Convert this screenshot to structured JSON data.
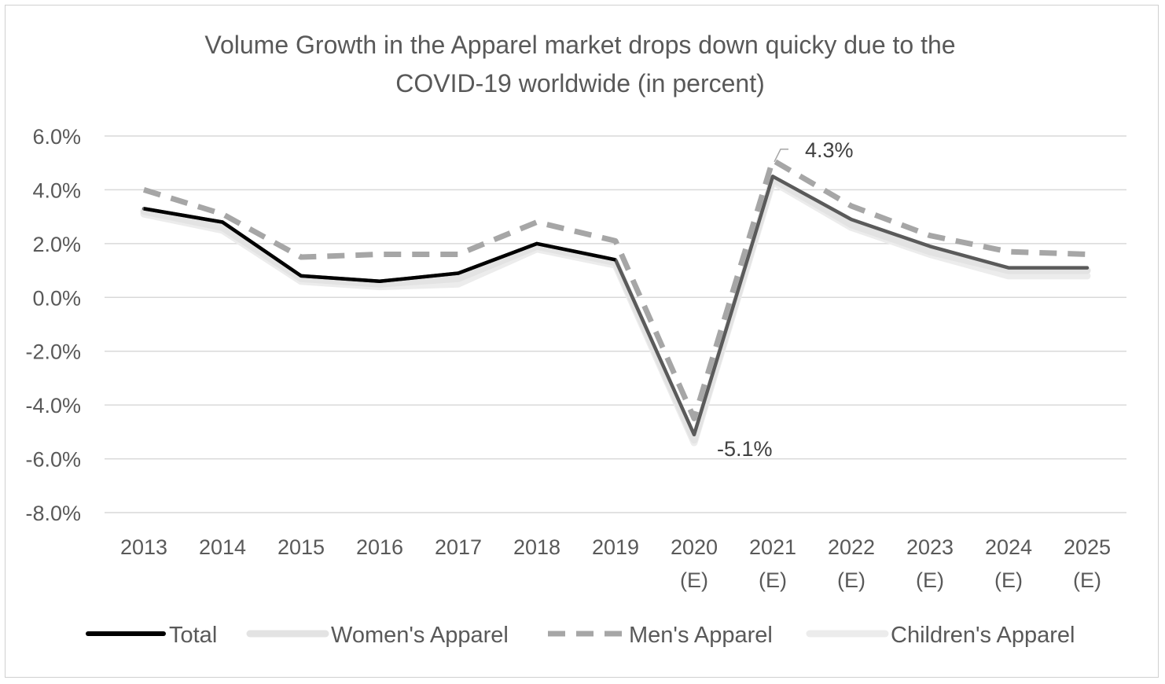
{
  "chart_data": {
    "type": "line",
    "title_lines": [
      "Volume Growth in the Apparel market drops down quicky due to the",
      "COVID-19 worldwide (in percent)"
    ],
    "categories": [
      [
        "2013"
      ],
      [
        "2014"
      ],
      [
        "2015"
      ],
      [
        "2016"
      ],
      [
        "2017"
      ],
      [
        "2018"
      ],
      [
        "2019"
      ],
      [
        "2020",
        "(E)"
      ],
      [
        "2021",
        "(E)"
      ],
      [
        "2022",
        "(E)"
      ],
      [
        "2023",
        "(E)"
      ],
      [
        "2024",
        "(E)"
      ],
      [
        "2025",
        "(E)"
      ]
    ],
    "y_ticks": [
      "6.0%",
      "4.0%",
      "2.0%",
      "0.0%",
      "-2.0%",
      "-4.0%",
      "-6.0%",
      "-8.0%"
    ],
    "ylim": [
      -8,
      6
    ],
    "grid": true,
    "legend_position": "bottom",
    "series": [
      {
        "name": "Total",
        "color": "#000000",
        "dash": "solid",
        "values": [
          3.3,
          2.8,
          0.8,
          0.6,
          0.9,
          2.0,
          1.4,
          -5.1,
          4.5,
          2.9,
          1.9,
          1.1,
          1.1
        ]
      },
      {
        "name": "Women's Apparel",
        "color": "#e3e3e3",
        "dash": "solid",
        "values": [
          3.2,
          2.6,
          0.7,
          0.5,
          0.7,
          1.9,
          1.3,
          -5.3,
          4.4,
          2.7,
          1.7,
          1.0,
          1.0
        ]
      },
      {
        "name": "Men's Apparel",
        "color": "#a6a6a6",
        "dash": "dashed",
        "values": [
          4.0,
          3.1,
          1.5,
          1.6,
          1.6,
          2.8,
          2.1,
          -4.5,
          5.1,
          3.4,
          2.3,
          1.7,
          1.6
        ]
      },
      {
        "name": "Children's Apparel",
        "color": "#ececec",
        "dash": "solid",
        "values": [
          3.1,
          2.5,
          0.6,
          0.4,
          0.5,
          1.8,
          1.2,
          -5.4,
          4.3,
          2.6,
          1.6,
          0.8,
          0.8
        ]
      }
    ],
    "annotations": [
      {
        "text": "4.3%",
        "category": "2021 (E)"
      },
      {
        "text": "-5.1%",
        "category": "2020 (E)"
      }
    ]
  }
}
